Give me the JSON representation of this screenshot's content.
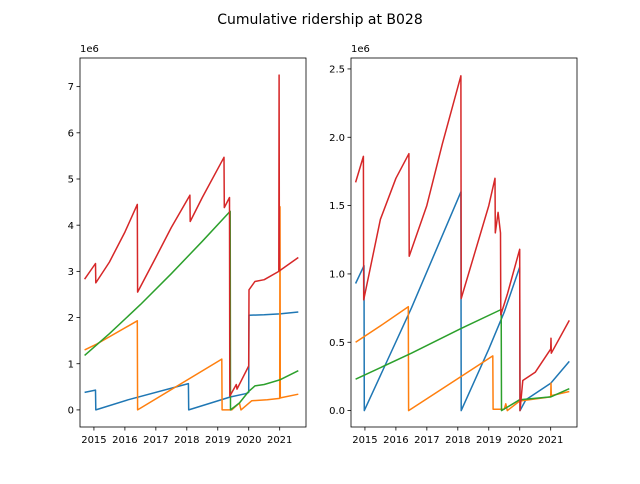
{
  "figure": {
    "title": "Cumulative ridership at B028"
  },
  "chart_data": [
    {
      "type": "line",
      "title": "",
      "xlabel": "",
      "ylabel": "",
      "offset_label": "1e6",
      "x_ticks": [
        "2015",
        "2016",
        "2017",
        "2018",
        "2019",
        "2020",
        "2021"
      ],
      "y_ticks": [
        "0",
        "1",
        "2",
        "3",
        "4",
        "5",
        "6",
        "7"
      ],
      "xlim": [
        2014.55,
        2021.85
      ],
      "ylim": [
        -0.37,
        7.62
      ],
      "grid": false,
      "series": [
        {
          "color": "#1f77b4",
          "points": [
            [
              2014.7,
              0.38
            ],
            [
              2015.05,
              0.43
            ],
            [
              2015.06,
              0.0
            ],
            [
              2016.1,
              0.22
            ],
            [
              2018.05,
              0.57
            ],
            [
              2018.06,
              0.0
            ],
            [
              2019.4,
              0.28
            ],
            [
              2019.9,
              0.35
            ],
            [
              2020.0,
              0.38
            ],
            [
              2020.01,
              2.05
            ],
            [
              2020.5,
              2.06
            ],
            [
              2021.0,
              2.08
            ],
            [
              2021.6,
              2.12
            ]
          ]
        },
        {
          "color": "#ff7f0e",
          "points": [
            [
              2014.7,
              1.3
            ],
            [
              2015.1,
              1.43
            ],
            [
              2016.4,
              1.93
            ],
            [
              2016.41,
              0.0
            ],
            [
              2019.13,
              1.1
            ],
            [
              2019.14,
              0.0
            ],
            [
              2019.45,
              0.0
            ],
            [
              2019.7,
              0.15
            ],
            [
              2019.75,
              0.0
            ],
            [
              2020.1,
              0.2
            ],
            [
              2020.6,
              0.22
            ],
            [
              2021.0,
              0.25
            ],
            [
              2021.01,
              4.4
            ],
            [
              2021.02,
              0.26
            ],
            [
              2021.6,
              0.34
            ]
          ]
        },
        {
          "color": "#2ca02c",
          "points": [
            [
              2014.7,
              1.18
            ],
            [
              2015.5,
              1.65
            ],
            [
              2016.5,
              2.28
            ],
            [
              2017.5,
              2.95
            ],
            [
              2018.5,
              3.65
            ],
            [
              2019.4,
              4.3
            ],
            [
              2019.41,
              0.0
            ],
            [
              2019.7,
              0.15
            ],
            [
              2020.0,
              0.4
            ],
            [
              2020.2,
              0.52
            ],
            [
              2020.5,
              0.55
            ],
            [
              2021.0,
              0.65
            ],
            [
              2021.6,
              0.85
            ]
          ]
        },
        {
          "color": "#d62728",
          "points": [
            [
              2014.7,
              2.83
            ],
            [
              2015.05,
              3.17
            ],
            [
              2015.06,
              2.75
            ],
            [
              2015.5,
              3.2
            ],
            [
              2016.0,
              3.85
            ],
            [
              2016.4,
              4.45
            ],
            [
              2016.41,
              2.55
            ],
            [
              2017.0,
              3.3
            ],
            [
              2017.5,
              3.95
            ],
            [
              2018.1,
              4.65
            ],
            [
              2018.11,
              4.08
            ],
            [
              2018.5,
              4.6
            ],
            [
              2019.2,
              5.47
            ],
            [
              2019.21,
              4.38
            ],
            [
              2019.38,
              4.6
            ],
            [
              2019.39,
              0.3
            ],
            [
              2019.6,
              0.55
            ],
            [
              2019.62,
              0.45
            ],
            [
              2020.0,
              0.95
            ],
            [
              2020.01,
              2.6
            ],
            [
              2020.2,
              2.78
            ],
            [
              2020.5,
              2.82
            ],
            [
              2020.97,
              3.0
            ],
            [
              2020.98,
              7.25
            ],
            [
              2020.99,
              3.01
            ],
            [
              2021.6,
              3.3
            ]
          ]
        }
      ]
    },
    {
      "type": "line",
      "title": "",
      "xlabel": "",
      "ylabel": "",
      "offset_label": "1e6",
      "x_ticks": [
        "2015",
        "2016",
        "2017",
        "2018",
        "2019",
        "2020",
        "2021"
      ],
      "y_ticks": [
        "0.0",
        "0.5",
        "1.0",
        "1.5",
        "2.0",
        "2.5"
      ],
      "xlim": [
        2014.55,
        2021.85
      ],
      "ylim": [
        -0.12,
        2.58
      ],
      "grid": false,
      "series": [
        {
          "color": "#1f77b4",
          "points": [
            [
              2014.7,
              0.93
            ],
            [
              2014.97,
              1.06
            ],
            [
              2014.98,
              0.0
            ],
            [
              2016.5,
              0.75
            ],
            [
              2018.1,
              1.6
            ],
            [
              2018.11,
              0.0
            ],
            [
              2019.0,
              0.45
            ],
            [
              2019.5,
              0.72
            ],
            [
              2020.0,
              1.05
            ],
            [
              2020.01,
              0.0
            ],
            [
              2020.2,
              0.08
            ],
            [
              2021.0,
              0.2
            ],
            [
              2021.6,
              0.36
            ]
          ]
        },
        {
          "color": "#ff7f0e",
          "points": [
            [
              2014.7,
              0.5
            ],
            [
              2015.5,
              0.62
            ],
            [
              2016.4,
              0.76
            ],
            [
              2016.41,
              0.0
            ],
            [
              2019.13,
              0.4
            ],
            [
              2019.14,
              0.01
            ],
            [
              2019.5,
              0.01
            ],
            [
              2019.55,
              0.05
            ],
            [
              2019.6,
              0.0
            ],
            [
              2020.0,
              0.07
            ],
            [
              2021.0,
              0.1
            ],
            [
              2021.01,
              0.2
            ],
            [
              2021.02,
              0.11
            ],
            [
              2021.6,
              0.14
            ]
          ]
        },
        {
          "color": "#2ca02c",
          "points": [
            [
              2014.7,
              0.23
            ],
            [
              2016.5,
              0.42
            ],
            [
              2018.1,
              0.6
            ],
            [
              2019.4,
              0.74
            ],
            [
              2019.41,
              0.0
            ],
            [
              2020.0,
              0.08
            ],
            [
              2021.0,
              0.1
            ],
            [
              2021.6,
              0.16
            ]
          ]
        },
        {
          "color": "#d62728",
          "points": [
            [
              2014.7,
              1.67
            ],
            [
              2014.95,
              1.86
            ],
            [
              2014.96,
              0.81
            ],
            [
              2015.5,
              1.4
            ],
            [
              2016.0,
              1.7
            ],
            [
              2016.42,
              1.88
            ],
            [
              2016.43,
              1.13
            ],
            [
              2017.0,
              1.5
            ],
            [
              2017.5,
              1.95
            ],
            [
              2018.1,
              2.45
            ],
            [
              2018.11,
              0.82
            ],
            [
              2019.0,
              1.5
            ],
            [
              2019.2,
              1.7
            ],
            [
              2019.21,
              1.3
            ],
            [
              2019.3,
              1.45
            ],
            [
              2019.38,
              1.3
            ],
            [
              2019.39,
              0.7
            ],
            [
              2019.6,
              0.85
            ],
            [
              2020.0,
              1.18
            ],
            [
              2020.01,
              0.0
            ],
            [
              2020.1,
              0.22
            ],
            [
              2020.5,
              0.28
            ],
            [
              2021.0,
              0.45
            ],
            [
              2021.01,
              0.53
            ],
            [
              2021.02,
              0.42
            ],
            [
              2021.6,
              0.66
            ]
          ]
        }
      ]
    }
  ]
}
